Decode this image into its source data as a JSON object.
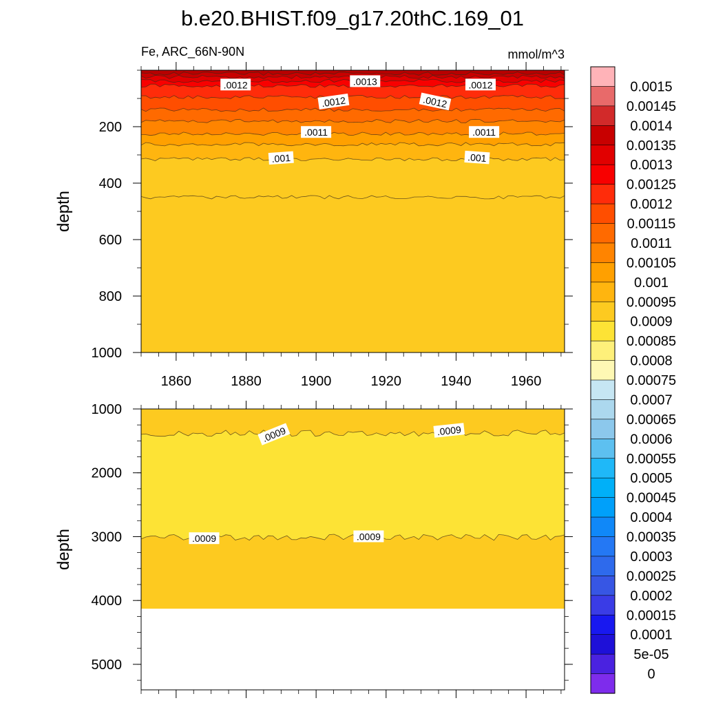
{
  "title": "b.e20.BHIST.f09_g17.20thC.169_01",
  "subtitle_left": "Fe, ARC_66N-90N",
  "subtitle_right": "mmol/m^3",
  "chart_data": [
    {
      "type": "heatmap",
      "panel": "upper",
      "ylabel": "depth",
      "xlim": [
        1850,
        1971
      ],
      "ylim": [
        1000,
        0
      ],
      "x_ticks": [
        1860,
        1880,
        1900,
        1920,
        1940,
        1960
      ],
      "y_ticks": [
        200,
        400,
        600,
        800,
        1000
      ],
      "grid": false,
      "contours": [
        {
          "level": 0.00145,
          "depth": 12
        },
        {
          "level": 0.0014,
          "depth": 24
        },
        {
          "level": 0.00135,
          "depth": 38
        },
        {
          "level": 0.0013,
          "depth": 55
        },
        {
          "level": 0.00125,
          "depth": 95
        },
        {
          "level": 0.0012,
          "depth": 140
        },
        {
          "level": 0.00115,
          "depth": 180
        },
        {
          "level": 0.0011,
          "depth": 225
        },
        {
          "level": 0.00105,
          "depth": 262
        },
        {
          "level": 0.001,
          "depth": 315
        },
        {
          "level": 0.00095,
          "depth": 450
        }
      ],
      "contour_labels": [
        {
          "text": ".0012",
          "x": 1877,
          "depth": 52,
          "angle": 0
        },
        {
          "text": ".0013",
          "x": 1914,
          "depth": 40,
          "angle": 0
        },
        {
          "text": ".0012",
          "x": 1947,
          "depth": 52,
          "angle": 0
        },
        {
          "text": ".0012",
          "x": 1905,
          "depth": 112,
          "angle": -8
        },
        {
          "text": ".0012",
          "x": 1934,
          "depth": 112,
          "angle": 12
        },
        {
          "text": ".0011",
          "x": 1900,
          "depth": 220,
          "angle": 0
        },
        {
          "text": ".0011",
          "x": 1948,
          "depth": 220,
          "angle": 0
        },
        {
          "text": ".001",
          "x": 1890,
          "depth": 312,
          "angle": -4
        },
        {
          "text": ".001",
          "x": 1946,
          "depth": 310,
          "angle": 4
        }
      ]
    },
    {
      "type": "heatmap",
      "panel": "lower",
      "ylabel": "depth",
      "xlim": [
        1850,
        1971
      ],
      "ylim": [
        5400,
        1000
      ],
      "y_ticks": [
        1000,
        2000,
        3000,
        4000,
        5000
      ],
      "grid": false,
      "bottom_depth": 4130,
      "contours": [
        {
          "level": 0.0009,
          "depth": 1380
        },
        {
          "level": 0.0009,
          "depth": 3010
        }
      ],
      "contour_labels": [
        {
          "text": ".0009",
          "x": 1888,
          "depth": 1400,
          "angle": -22
        },
        {
          "text": ".0009",
          "x": 1938,
          "depth": 1340,
          "angle": -6
        },
        {
          "text": ".0009",
          "x": 1868,
          "depth": 3030,
          "angle": 0
        },
        {
          "text": ".0009",
          "x": 1915,
          "depth": 3000,
          "angle": 0
        }
      ]
    }
  ],
  "colorbar": {
    "labels": [
      "0.0015",
      "0.00145",
      "0.0014",
      "0.00135",
      "0.0013",
      "0.00125",
      "0.0012",
      "0.00115",
      "0.0011",
      "0.00105",
      "0.001",
      "0.00095",
      "0.0009",
      "0.00085",
      "0.0008",
      "0.00075",
      "0.0007",
      "0.00065",
      "0.0006",
      "0.00055",
      "0.0005",
      "0.00045",
      "0.0004",
      "0.00035",
      "0.0003",
      "0.00025",
      "0.0002",
      "0.00015",
      "0.0001",
      "5e-05",
      "0"
    ],
    "colors": [
      "#FFB3B8",
      "#E86A6A",
      "#D22A2A",
      "#C80000",
      "#E10000",
      "#F80000",
      "#FF2C0A",
      "#FF4E00",
      "#FF6A00",
      "#FF8400",
      "#FFA000",
      "#FFB50F",
      "#FDCA20",
      "#FDE335",
      "#FEF07A",
      "#FEF8B4",
      "#C6E6F3",
      "#ACD8EE",
      "#8CC8EC",
      "#5DC0F0",
      "#1FB8F8",
      "#00B0F8",
      "#00A0FA",
      "#1088F8",
      "#2478F4",
      "#2E6AEC",
      "#3756E4",
      "#3A3CE6",
      "#1818F0",
      "#1E10D8",
      "#4A22E0",
      "#7E2CEC"
    ]
  }
}
